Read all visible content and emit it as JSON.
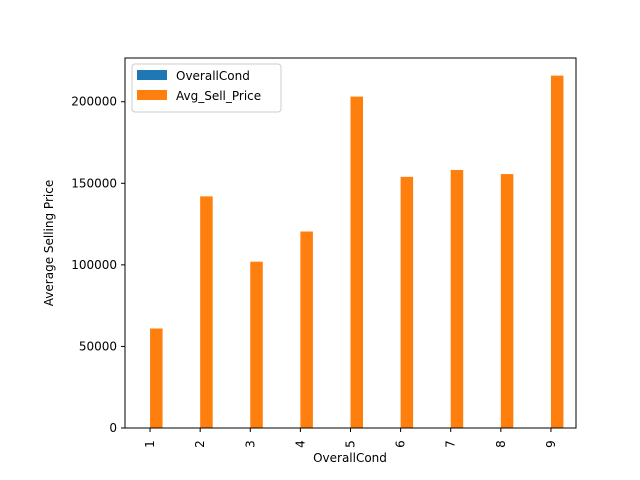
{
  "chart_data": {
    "type": "bar",
    "title": "",
    "xlabel": "OverallCond",
    "ylabel": "Average Selling Price",
    "categories": [
      "1",
      "2",
      "3",
      "4",
      "5",
      "6",
      "7",
      "8",
      "9"
    ],
    "series": [
      {
        "name": "OverallCond",
        "color": "#1f77b4",
        "values": [
          1,
          2,
          3,
          4,
          5,
          6,
          7,
          8,
          9
        ]
      },
      {
        "name": "Avg_Sell_Price",
        "color": "#ff7f0e",
        "values": [
          61000,
          141986,
          101929,
          120438,
          203146,
          153962,
          158145,
          155651,
          216005
        ]
      }
    ],
    "yticks": [
      0,
      50000,
      100000,
      150000,
      200000
    ],
    "ylim": [
      0,
      226806
    ],
    "legend": "top-left",
    "grid": false
  }
}
